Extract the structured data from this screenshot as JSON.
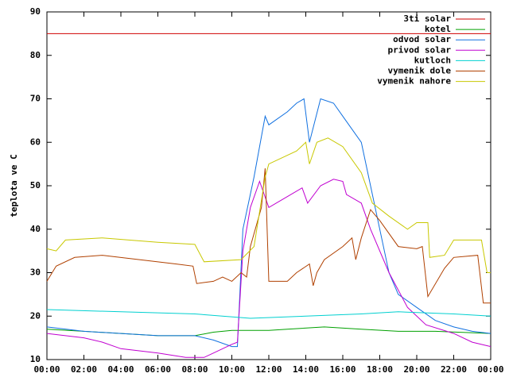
{
  "chart_data": {
    "type": "line",
    "y_label": "teplota ve C",
    "xlim": [
      0,
      24
    ],
    "xticks": [
      {
        "value": 0,
        "label": "00:00"
      },
      {
        "value": 2,
        "label": "02:00"
      },
      {
        "value": 4,
        "label": "04:00"
      },
      {
        "value": 6,
        "label": "06:00"
      },
      {
        "value": 8,
        "label": "08:00"
      },
      {
        "value": 10,
        "label": "10:00"
      },
      {
        "value": 12,
        "label": "12:00"
      },
      {
        "value": 14,
        "label": "14:00"
      },
      {
        "value": 16,
        "label": "16:00"
      },
      {
        "value": 18,
        "label": "18:00"
      },
      {
        "value": 20,
        "label": "20:00"
      },
      {
        "value": 22,
        "label": "22:00"
      },
      {
        "value": 24,
        "label": "00:00"
      }
    ],
    "ylim": [
      10,
      90
    ],
    "yticks": [
      10,
      20,
      30,
      40,
      50,
      60,
      70,
      80,
      90
    ],
    "grid": false,
    "legend": "top-right",
    "series": [
      {
        "name": "3ti solar",
        "color": "#d00000",
        "x": [
          0,
          24
        ],
        "values": [
          85,
          85
        ]
      },
      {
        "name": "kotel",
        "color": "#00a000",
        "x": [
          0,
          2,
          4,
          6,
          8,
          9,
          10,
          12,
          13,
          15,
          17,
          19,
          21,
          24
        ],
        "values": [
          17,
          16.5,
          16,
          15.5,
          15.5,
          16.3,
          16.7,
          16.7,
          17,
          17.5,
          17,
          16.5,
          16.5,
          16
        ]
      },
      {
        "name": "odvod solar",
        "color": "#1070e0",
        "x": [
          0,
          2,
          4,
          6,
          8,
          9,
          10,
          10.3,
          10.6,
          11.2,
          11.8,
          12,
          13,
          13.5,
          13.9,
          14.2,
          14.8,
          15.5,
          16,
          17,
          17.5,
          18,
          18.5,
          19,
          20,
          21,
          22,
          23,
          24
        ],
        "values": [
          17.5,
          16.5,
          16,
          15.5,
          15.5,
          14.5,
          13,
          13,
          40,
          52,
          66,
          64,
          67,
          69,
          70,
          60,
          70,
          69,
          66,
          60,
          50,
          40,
          30,
          25,
          22,
          19,
          17.5,
          16.5,
          16
        ]
      },
      {
        "name": "privod solar",
        "color": "#c000d0",
        "x": [
          0,
          2,
          3,
          4,
          6,
          7.5,
          8.5,
          9,
          10,
          10.3,
          10.6,
          11,
          11.5,
          12,
          12.8,
          13.8,
          14.1,
          14.8,
          15.5,
          16,
          16.2,
          17,
          17.5,
          18.5,
          19.5,
          20.5,
          22,
          23,
          24
        ],
        "values": [
          16,
          15,
          14,
          12.5,
          11.5,
          10.5,
          10.5,
          11.5,
          13.5,
          14,
          35,
          45,
          51,
          45,
          47,
          49.5,
          46,
          50,
          51.5,
          51,
          48,
          46,
          40,
          30,
          22,
          18,
          16,
          14,
          13
        ]
      },
      {
        "name": "kutloch",
        "color": "#00d0d0",
        "x": [
          0,
          4,
          8,
          11,
          14,
          17,
          19,
          22,
          24
        ],
        "values": [
          21.5,
          21,
          20.5,
          19.5,
          20,
          20.5,
          21,
          20.5,
          20
        ]
      },
      {
        "name": "vymenik dole",
        "color": "#b04000",
        "x": [
          0,
          0.5,
          1.5,
          3,
          5,
          7,
          7.9,
          8.1,
          9,
          9.5,
          10,
          10.5,
          10.8,
          11,
          11.6,
          11.8,
          12,
          13,
          13.5,
          14.2,
          14.4,
          14.6,
          15,
          16,
          16.5,
          16.7,
          17,
          17.5,
          18,
          19,
          20,
          20.3,
          20.6,
          21.5,
          22,
          23.3,
          23.6,
          24
        ],
        "values": [
          28,
          31.5,
          33.5,
          34,
          33,
          32,
          31.5,
          27.5,
          28,
          29,
          28,
          30,
          29,
          36,
          45,
          54,
          28,
          28,
          30,
          32,
          27,
          30,
          33,
          36,
          38,
          33,
          38,
          44.5,
          42,
          36,
          35.5,
          36,
          24.5,
          31,
          33.5,
          34,
          23,
          23
        ]
      },
      {
        "name": "vymenik nahore",
        "color": "#c8c800",
        "x": [
          0,
          0.5,
          1,
          3,
          6,
          8,
          8.5,
          10.5,
          11.2,
          11.8,
          12,
          13.5,
          14,
          14.2,
          14.6,
          15.2,
          16,
          17,
          17.6,
          18.5,
          19.5,
          20,
          20.6,
          20.7,
          21.5,
          22,
          23.5,
          23.8,
          24
        ],
        "values": [
          35.5,
          35,
          37.5,
          38,
          37,
          36.5,
          32.5,
          33,
          36,
          52,
          55,
          58,
          60,
          55,
          60,
          61,
          59,
          53,
          46,
          43,
          40,
          41.5,
          41.5,
          33.5,
          34,
          37.5,
          37.5,
          30,
          30
        ]
      }
    ]
  }
}
